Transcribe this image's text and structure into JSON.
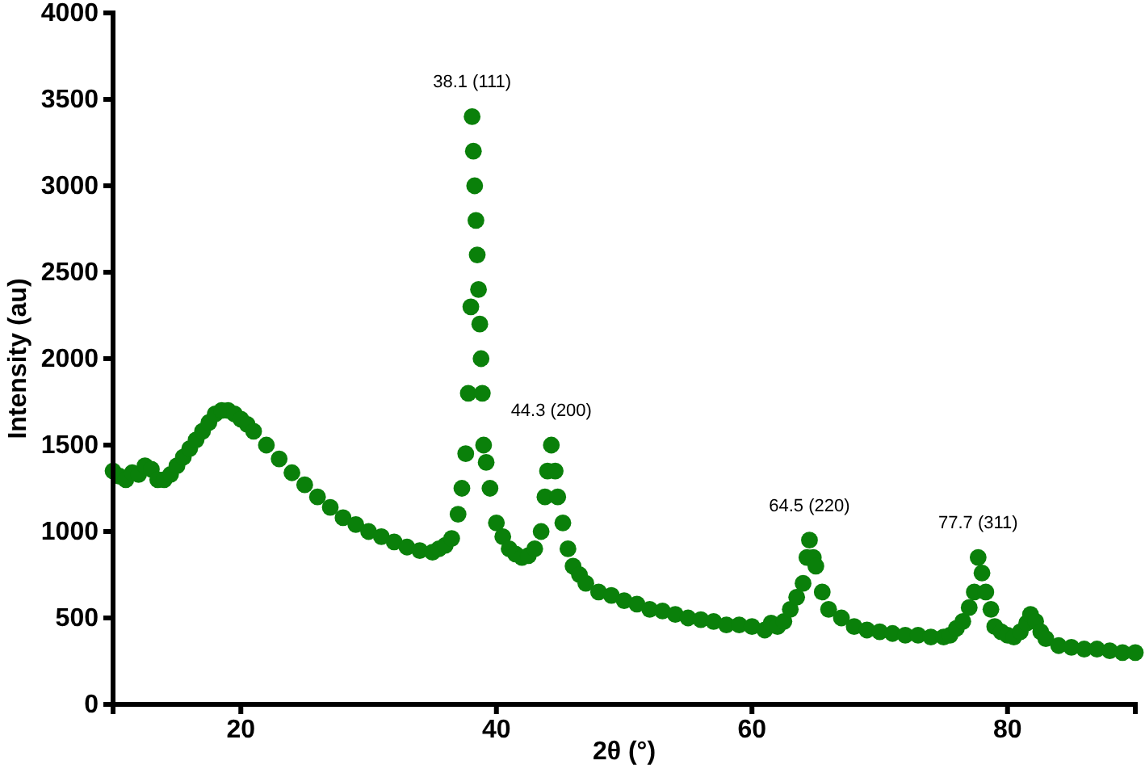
{
  "chart_data": {
    "type": "scatter",
    "xlabel": "2θ (°)",
    "ylabel": "Intensity (au)",
    "xlim": [
      10,
      90
    ],
    "xticks": [
      20,
      40,
      60,
      80
    ],
    "ylim": [
      0,
      4000
    ],
    "yticks": [
      0,
      500,
      1000,
      1500,
      2000,
      2500,
      3000,
      3500,
      4000
    ],
    "grid": false,
    "marker": "circle",
    "annotations": [
      {
        "text": "38.1 (111)",
        "x": 38.1,
        "y": 3400
      },
      {
        "text": "44.3 (200)",
        "x": 44.3,
        "y": 1500
      },
      {
        "text": "64.5 (220)",
        "x": 64.5,
        "y": 950
      },
      {
        "text": "77.7 (311)",
        "x": 77.7,
        "y": 850
      }
    ],
    "series": [
      {
        "color": "#0a800a",
        "x": [
          10,
          10.5,
          11,
          11.5,
          12,
          12.5,
          13,
          13.5,
          14,
          14.5,
          15,
          15.5,
          16,
          16.5,
          17,
          17.5,
          18,
          18.5,
          19,
          19.5,
          20,
          20.5,
          21,
          22,
          23,
          24,
          25,
          26,
          27,
          28,
          29,
          30,
          31,
          32,
          33,
          34,
          35,
          35.5,
          36,
          36.5,
          37,
          37.3,
          37.6,
          37.8,
          38,
          38.1,
          38.2,
          38.3,
          38.4,
          38.5,
          38.6,
          38.7,
          38.8,
          38.9,
          39,
          39.2,
          39.5,
          40,
          40.5,
          41,
          41.5,
          42,
          42.5,
          43,
          43.5,
          43.8,
          44,
          44.3,
          44.6,
          44.8,
          45.2,
          45.6,
          46,
          46.5,
          47,
          48,
          49,
          50,
          51,
          52,
          53,
          54,
          55,
          56,
          57,
          58,
          59,
          60,
          61,
          61.5,
          62,
          62.5,
          63,
          63.5,
          64,
          64.3,
          64.5,
          64.8,
          65,
          65.5,
          66,
          67,
          68,
          69,
          70,
          71,
          72,
          73,
          74,
          75,
          75.5,
          76,
          76.5,
          77,
          77.4,
          77.7,
          78,
          78.3,
          78.7,
          79,
          79.5,
          80,
          80.5,
          81,
          81.5,
          81.8,
          82.2,
          82.6,
          83,
          84,
          85,
          86,
          87,
          88,
          89,
          90
        ],
        "values": [
          1350,
          1320,
          1300,
          1340,
          1330,
          1380,
          1360,
          1300,
          1300,
          1330,
          1380,
          1430,
          1480,
          1530,
          1580,
          1630,
          1680,
          1700,
          1700,
          1680,
          1650,
          1620,
          1580,
          1500,
          1420,
          1340,
          1270,
          1200,
          1140,
          1080,
          1040,
          1000,
          970,
          940,
          910,
          890,
          880,
          900,
          920,
          960,
          1100,
          1250,
          1450,
          1800,
          2300,
          3400,
          3200,
          3000,
          2800,
          2600,
          2400,
          2200,
          2000,
          1800,
          1500,
          1400,
          1250,
          1050,
          970,
          900,
          870,
          850,
          860,
          900,
          1000,
          1200,
          1350,
          1500,
          1350,
          1200,
          1050,
          900,
          800,
          750,
          700,
          650,
          630,
          600,
          580,
          550,
          540,
          520,
          500,
          490,
          480,
          460,
          460,
          450,
          430,
          470,
          450,
          480,
          550,
          620,
          700,
          850,
          950,
          850,
          800,
          650,
          550,
          500,
          450,
          430,
          420,
          410,
          400,
          400,
          390,
          390,
          400,
          440,
          480,
          560,
          650,
          850,
          760,
          650,
          550,
          450,
          420,
          400,
          390,
          420,
          470,
          520,
          480,
          420,
          380,
          340,
          330,
          320,
          320,
          310,
          300,
          300
        ]
      }
    ]
  }
}
